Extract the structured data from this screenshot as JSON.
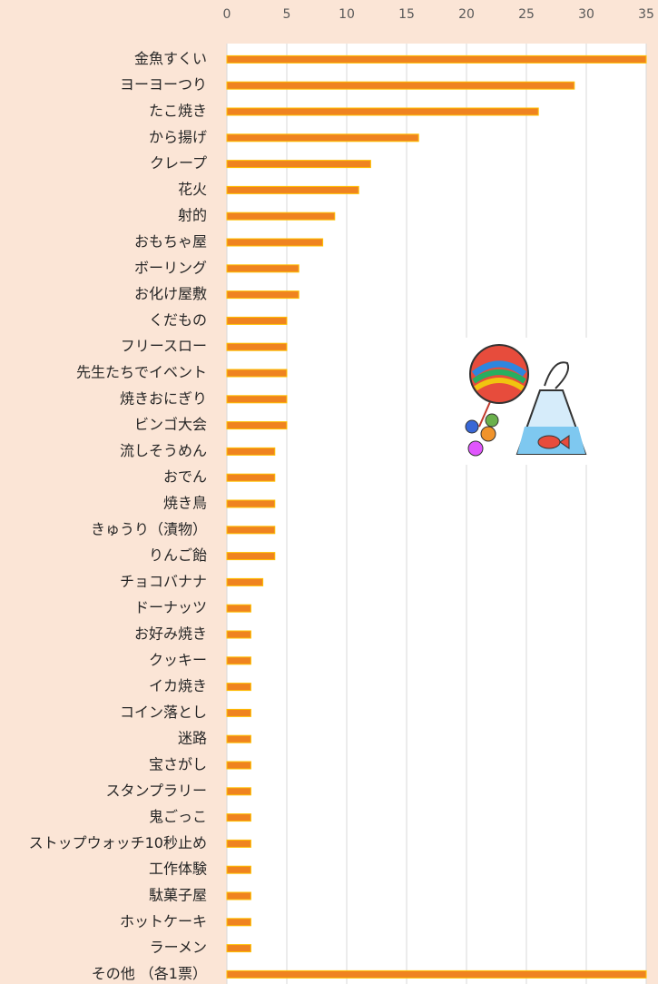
{
  "chart_data": {
    "type": "barh",
    "categories": [
      "金魚すくい",
      "ヨーヨーつり",
      "たこ焼き",
      "から揚げ",
      "クレープ",
      "花火",
      "射的",
      "おもちゃ屋",
      "ボーリング",
      "お化け屋敷",
      "くだもの",
      "フリースロー",
      "先生たちでイベント",
      "焼きおにぎり",
      "ビンゴ大会",
      "流しそうめん",
      "おでん",
      "焼き鳥",
      "きゅうり（漬物）",
      "りんご飴",
      "チョコバナナ",
      "ドーナッツ",
      "お好み焼き",
      "クッキー",
      "イカ焼き",
      "コイン落とし",
      "迷路",
      "宝さがし",
      "スタンプラリー",
      "鬼ごっこ",
      "ストップウォッチ10秒止め",
      "工作体験",
      "駄菓子屋",
      "ホットケーキ",
      "ラーメン",
      "その他 （各1票）"
    ],
    "values": [
      35,
      29,
      26,
      16,
      12,
      11,
      9,
      8,
      6,
      6,
      5,
      5,
      5,
      5,
      5,
      4,
      4,
      4,
      4,
      4,
      3,
      2,
      2,
      2,
      2,
      2,
      2,
      2,
      2,
      2,
      2,
      2,
      2,
      2,
      2,
      35
    ],
    "color": "#ef8320",
    "edgecolor": "#ffc000",
    "xlim": [
      0,
      35
    ],
    "xticks": [
      0,
      5,
      10,
      15,
      20,
      25,
      30,
      35
    ],
    "grid": true
  }
}
